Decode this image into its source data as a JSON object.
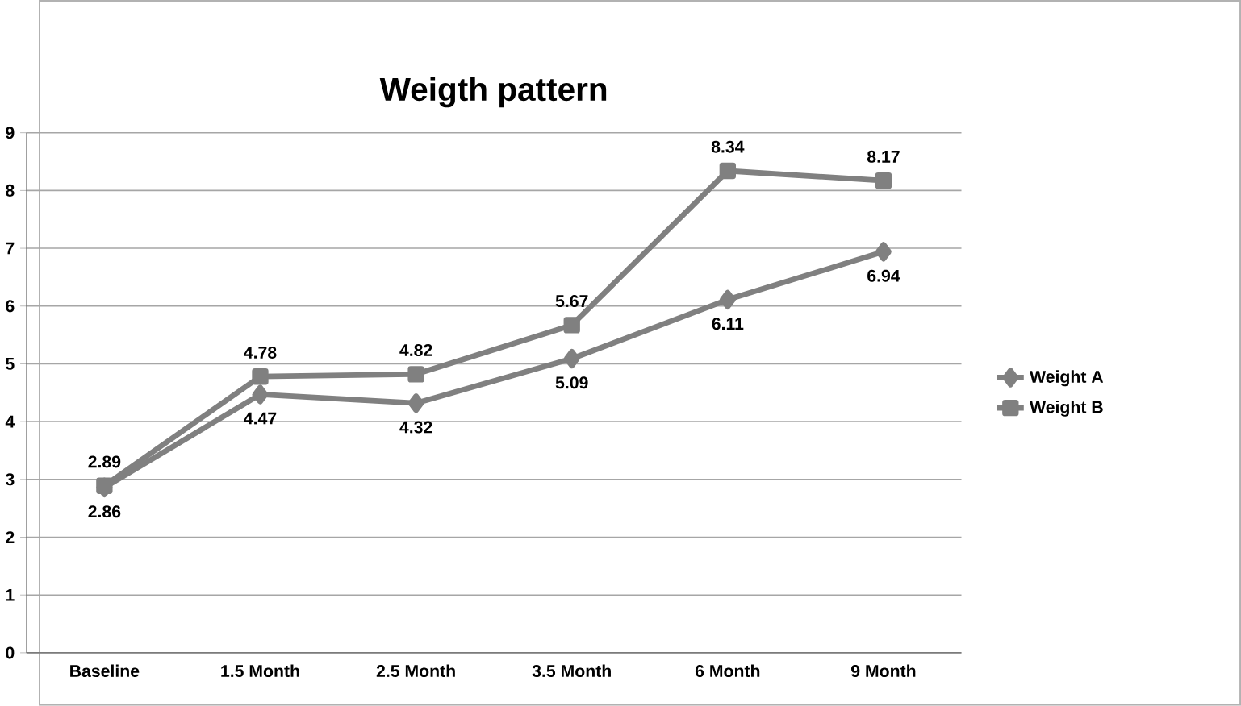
{
  "chart_data": {
    "type": "line",
    "title": "Weigth pattern",
    "categories": [
      "Baseline",
      "1.5 Month",
      "2.5 Month",
      "3.5 Month",
      "6 Month",
      "9 Month"
    ],
    "series": [
      {
        "name": "Weight A",
        "color": "#808080",
        "marker": "diamond",
        "values": [
          2.86,
          4.47,
          4.32,
          5.09,
          6.11,
          6.94
        ]
      },
      {
        "name": "Weight B",
        "color": "#808080",
        "marker": "square",
        "values": [
          2.89,
          4.78,
          4.82,
          5.67,
          8.34,
          8.17
        ]
      }
    ],
    "ylim": [
      0,
      9
    ],
    "yticks": [
      0,
      1,
      2,
      3,
      4,
      5,
      6,
      7,
      8,
      9
    ],
    "grid": "y",
    "legend": "right",
    "data_labels": true,
    "line_style": "solid"
  }
}
